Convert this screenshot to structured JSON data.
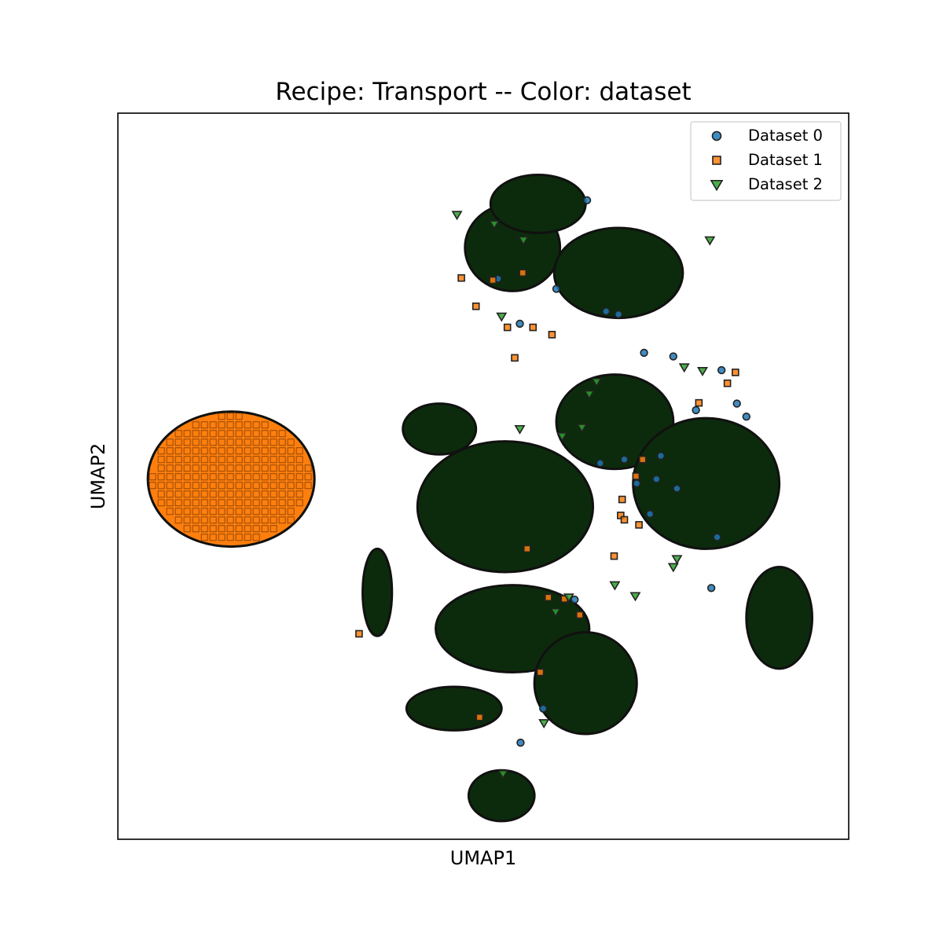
{
  "chart_data": {
    "type": "scatter",
    "title": "Recipe: Transport -- Color: dataset",
    "xlabel": "UMAP1",
    "ylabel": "UMAP2",
    "xlim": [
      0,
      100
    ],
    "ylim": [
      0,
      100
    ],
    "xticks": false,
    "yticks": false,
    "grid": false,
    "legend": {
      "placement": "top-right"
    },
    "series": [
      {
        "name": "Dataset 0",
        "marker": "circle",
        "color": "#1f77b4",
        "edgecolor": "#222222",
        "points": [
          [
            52.0,
            77.2
          ],
          [
            60.0,
            75.8
          ],
          [
            64.2,
            88.0
          ],
          [
            55.0,
            71.0
          ],
          [
            68.5,
            72.3
          ],
          [
            72.0,
            67.0
          ],
          [
            86.0,
            58.2
          ],
          [
            72.8,
            44.8
          ],
          [
            71.0,
            49.0
          ],
          [
            76.5,
            48.3
          ],
          [
            82.0,
            41.6
          ],
          [
            81.2,
            34.6
          ],
          [
            82.6,
            64.6
          ],
          [
            84.7,
            60.0
          ],
          [
            55.1,
            13.3
          ],
          [
            58.2,
            18.0
          ],
          [
            69.3,
            52.3
          ],
          [
            66.0,
            51.8
          ],
          [
            62.5,
            33.0
          ],
          [
            76.0,
            66.5
          ],
          [
            73.7,
            49.6
          ],
          [
            74.3,
            52.8
          ],
          [
            79.1,
            59.1
          ],
          [
            66.8,
            72.7
          ]
        ]
      },
      {
        "name": "Dataset 1",
        "marker": "square",
        "color": "#ff7f0e",
        "edgecolor": "#222222",
        "clusters": [
          {
            "label": "isolated cluster",
            "cx": 15.5,
            "cy": 49.6,
            "rx": 11.4,
            "ry": 9.3
          }
        ],
        "points": [
          [
            54.3,
            66.3
          ],
          [
            56.0,
            40.0
          ],
          [
            58.9,
            33.3
          ],
          [
            68.8,
            44.6
          ],
          [
            67.9,
            39.0
          ],
          [
            84.5,
            64.3
          ],
          [
            83.4,
            62.8
          ],
          [
            51.3,
            77.0
          ],
          [
            47.0,
            77.3
          ],
          [
            55.4,
            78.0
          ],
          [
            59.4,
            69.5
          ],
          [
            71.8,
            52.3
          ],
          [
            69.0,
            46.8
          ],
          [
            79.5,
            60.1
          ],
          [
            63.2,
            30.9
          ],
          [
            57.8,
            23.0
          ],
          [
            61.1,
            33.1
          ],
          [
            49.0,
            73.4
          ],
          [
            53.3,
            70.5
          ],
          [
            69.3,
            44.0
          ],
          [
            70.9,
            50.0
          ],
          [
            33.0,
            28.3
          ],
          [
            49.5,
            16.8
          ],
          [
            71.3,
            43.3
          ],
          [
            56.8,
            70.5
          ]
        ]
      },
      {
        "name": "Dataset 2",
        "marker": "triangle-down",
        "color": "#2ca02c",
        "edgecolor": "#222222",
        "clusters": [
          {
            "label": "top-left arm",
            "cx": 54.0,
            "cy": 81.5,
            "rx": 6.5,
            "ry": 6.0
          },
          {
            "label": "top branch",
            "cx": 57.5,
            "cy": 87.5,
            "rx": 6.5,
            "ry": 4.0
          },
          {
            "label": "top-right upper",
            "cx": 68.5,
            "cy": 78.0,
            "rx": 8.8,
            "ry": 6.2
          },
          {
            "label": "left arm",
            "cx": 44.0,
            "cy": 56.5,
            "rx": 5.0,
            "ry": 3.5
          },
          {
            "label": "centre",
            "cx": 53.0,
            "cy": 45.8,
            "rx": 12.0,
            "ry": 9.0
          },
          {
            "label": "centre-right",
            "cx": 68.0,
            "cy": 57.5,
            "rx": 8.0,
            "ry": 6.5
          },
          {
            "label": "right",
            "cx": 80.5,
            "cy": 49.0,
            "rx": 10.0,
            "ry": 9.0
          },
          {
            "label": "lower-right",
            "cx": 90.5,
            "cy": 30.5,
            "rx": 4.5,
            "ry": 7.0
          },
          {
            "label": "lower centre",
            "cx": 54.0,
            "cy": 29.0,
            "rx": 10.5,
            "ry": 6.0
          },
          {
            "label": "bottom lobe",
            "cx": 64.0,
            "cy": 21.5,
            "rx": 7.0,
            "ry": 7.0
          },
          {
            "label": "bottom-left arm",
            "cx": 46.0,
            "cy": 18.0,
            "rx": 6.5,
            "ry": 3.0
          },
          {
            "label": "bottom",
            "cx": 52.5,
            "cy": 6.0,
            "rx": 4.5,
            "ry": 3.5
          },
          {
            "label": "thin left arm",
            "cx": 35.5,
            "cy": 34.0,
            "rx": 2.0,
            "ry": 6.0
          }
        ],
        "points": [
          [
            52.5,
            72.0
          ],
          [
            65.5,
            63.0
          ],
          [
            64.5,
            61.3
          ],
          [
            77.5,
            65.0
          ],
          [
            80.0,
            64.5
          ],
          [
            81.0,
            82.5
          ],
          [
            76.5,
            38.6
          ],
          [
            76.0,
            37.5
          ],
          [
            70.8,
            33.5
          ],
          [
            68.0,
            35.0
          ],
          [
            55.0,
            56.5
          ],
          [
            60.8,
            55.5
          ],
          [
            63.5,
            56.7
          ],
          [
            61.7,
            33.3
          ],
          [
            59.9,
            31.3
          ],
          [
            52.7,
            9.0
          ],
          [
            58.3,
            16.0
          ],
          [
            46.4,
            86.0
          ],
          [
            51.5,
            84.7
          ],
          [
            55.5,
            82.5
          ]
        ]
      }
    ]
  }
}
